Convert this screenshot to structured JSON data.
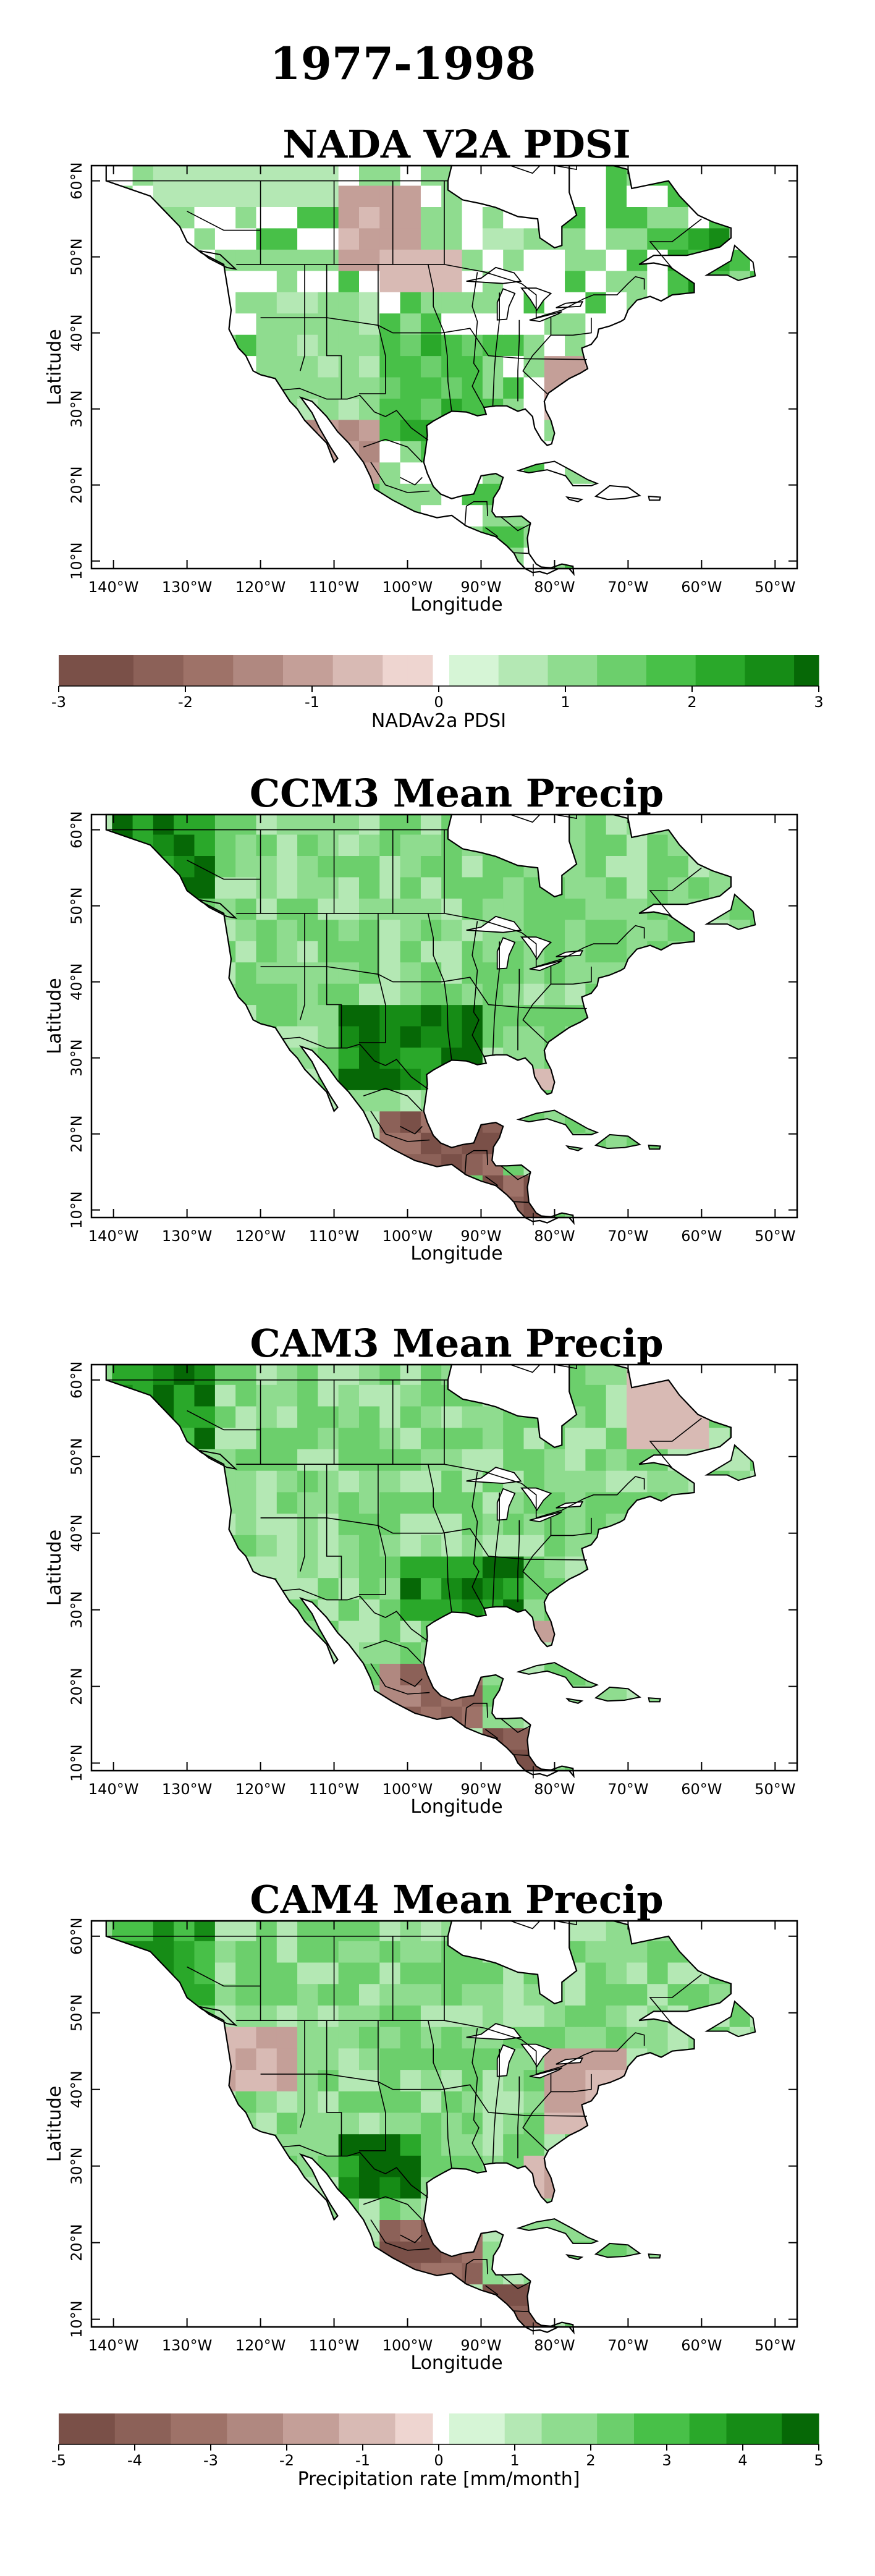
{
  "figure_title": "1977-1998",
  "colors": {
    "dry": [
      "#7a5048",
      "#8c6158",
      "#9e7268",
      "#b08880",
      "#c49f98",
      "#d8bab4",
      "#eed5d0"
    ],
    "wet": [
      "#d6f5d6",
      "#b4e8b4",
      "#8fdc8f",
      "#6ccf6c",
      "#48c048",
      "#2aa82a",
      "#168c16",
      "#066806"
    ],
    "land_white": "#ffffff",
    "ocean": "#ffffff",
    "coast": "#000000"
  },
  "panels": [
    {
      "title": "NADA V2A PDSI",
      "xlabel": "Longitude",
      "ylabel": "Latitude",
      "xticks": [
        "140°W",
        "130°W",
        "120°W",
        "110°W",
        "100°W",
        "90°W",
        "80°W",
        "70°W",
        "60°W",
        "50°W"
      ],
      "yticks": [
        "10°N",
        "20°N",
        "30°N",
        "40°N",
        "50°N",
        "60°N"
      ]
    },
    {
      "title": "CCM3 Mean Precip",
      "xlabel": "Longitude",
      "ylabel": "Latitude",
      "xticks": [
        "140°W",
        "130°W",
        "120°W",
        "110°W",
        "100°W",
        "90°W",
        "80°W",
        "70°W",
        "60°W",
        "50°W"
      ],
      "yticks": [
        "10°N",
        "20°N",
        "30°N",
        "40°N",
        "50°N",
        "60°N"
      ]
    },
    {
      "title": "CAM3 Mean Precip",
      "xlabel": "Longitude",
      "ylabel": "Latitude",
      "xticks": [
        "140°W",
        "130°W",
        "120°W",
        "110°W",
        "100°W",
        "90°W",
        "80°W",
        "70°W",
        "60°W",
        "50°W"
      ],
      "yticks": [
        "10°N",
        "20°N",
        "30°N",
        "40°N",
        "50°N",
        "60°N"
      ]
    },
    {
      "title": "CAM4 Mean Precip",
      "xlabel": "Longitude",
      "ylabel": "Latitude",
      "xticks": [
        "140°W",
        "130°W",
        "120°W",
        "110°W",
        "100°W",
        "90°W",
        "80°W",
        "70°W",
        "60°W",
        "50°W"
      ],
      "yticks": [
        "10°N",
        "20°N",
        "30°N",
        "40°N",
        "50°N",
        "60°N"
      ]
    }
  ],
  "colorbars": [
    {
      "label": "NADAv2a PDSI",
      "ticks": [
        "-3",
        "-2",
        "-1",
        "0",
        "1",
        "2",
        "3"
      ]
    },
    {
      "label": "Precipitation rate [mm/month]",
      "ticks": [
        "-5",
        "-4",
        "-3",
        "-2",
        "-1",
        "0",
        "1",
        "2",
        "3",
        "4",
        "5"
      ]
    }
  ],
  "chart_data": [
    {
      "type": "heatmap",
      "title": "NADA V2A PDSI",
      "xlabel": "Longitude",
      "ylabel": "Latitude",
      "xlim": [
        -143,
        -47
      ],
      "ylim": [
        9,
        62
      ],
      "colorbar": {
        "label": "NADAv2a PDSI",
        "range": [
          -3,
          3
        ]
      },
      "regions": [
        {
          "lat": [
            56,
            62
          ],
          "lon": [
            -135,
            -110
          ],
          "value": 0.5
        },
        {
          "lat": [
            48,
            60
          ],
          "lon": [
            -110,
            -98
          ],
          "value": -0.8
        },
        {
          "lat": [
            45,
            52
          ],
          "lon": [
            -105,
            -93
          ],
          "value": -0.6
        },
        {
          "lat": [
            50,
            55
          ],
          "lon": [
            -90,
            -80
          ],
          "value": 0.7
        },
        {
          "lat": [
            45,
            55
          ],
          "lon": [
            -65,
            -55
          ],
          "value": 2.0
        },
        {
          "lat": [
            25,
            40
          ],
          "lon": [
            -105,
            -90
          ],
          "value": 1.8
        },
        {
          "lat": [
            30,
            45
          ],
          "lon": [
            -120,
            -105
          ],
          "value": 0.9
        },
        {
          "lat": [
            30,
            38
          ],
          "lon": [
            -82,
            -72
          ],
          "value": -1.0
        },
        {
          "lat": [
            20,
            28
          ],
          "lon": [
            -115,
            -105
          ],
          "value": -1.2
        }
      ]
    },
    {
      "type": "heatmap",
      "title": "CCM3 Mean Precip",
      "xlabel": "Longitude",
      "ylabel": "Latitude",
      "xlim": [
        -143,
        -47
      ],
      "ylim": [
        9,
        62
      ],
      "colorbar": {
        "label": "Precipitation rate [mm/month]",
        "range": [
          -5,
          5
        ]
      },
      "regions": [
        {
          "lat": [
            50,
            61
          ],
          "lon": [
            -140,
            -125
          ],
          "value": 4.5
        },
        {
          "lat": [
            40,
            55
          ],
          "lon": [
            -90,
            -70
          ],
          "value": 2.0
        },
        {
          "lat": [
            25,
            38
          ],
          "lon": [
            -108,
            -90
          ],
          "value": 4.5
        },
        {
          "lat": [
            15,
            22
          ],
          "lon": [
            -105,
            -88
          ],
          "value": -4.0
        },
        {
          "lat": [
            8,
            15
          ],
          "lon": [
            -90,
            -80
          ],
          "value": -4.5
        },
        {
          "lat": [
            25,
            30
          ],
          "lon": [
            -83,
            -79
          ],
          "value": -1.0
        }
      ]
    },
    {
      "type": "heatmap",
      "title": "CAM3 Mean Precip",
      "xlabel": "Longitude",
      "ylabel": "Latitude",
      "xlim": [
        -143,
        -47
      ],
      "ylim": [
        9,
        62
      ],
      "colorbar": {
        "label": "Precipitation rate [mm/month]",
        "range": [
          -5,
          5
        ]
      },
      "regions": [
        {
          "lat": [
            50,
            61
          ],
          "lon": [
            -140,
            -125
          ],
          "value": 4.0
        },
        {
          "lat": [
            28,
            38
          ],
          "lon": [
            -100,
            -85
          ],
          "value": 4.0
        },
        {
          "lat": [
            15,
            22
          ],
          "lon": [
            -105,
            -90
          ],
          "value": -3.5
        },
        {
          "lat": [
            8,
            15
          ],
          "lon": [
            -90,
            -80
          ],
          "value": -4.5
        },
        {
          "lat": [
            25,
            30
          ],
          "lon": [
            -83,
            -79
          ],
          "value": -1.5
        },
        {
          "lat": [
            52,
            62
          ],
          "lon": [
            -70,
            -60
          ],
          "value": -1.0
        }
      ]
    },
    {
      "type": "heatmap",
      "title": "CAM4 Mean Precip",
      "xlabel": "Longitude",
      "ylabel": "Latitude",
      "xlim": [
        -143,
        -47
      ],
      "ylim": [
        9,
        62
      ],
      "colorbar": {
        "label": "Precipitation rate [mm/month]",
        "range": [
          -5,
          5
        ]
      },
      "regions": [
        {
          "lat": [
            50,
            61
          ],
          "lon": [
            -140,
            -125
          ],
          "value": 3.5
        },
        {
          "lat": [
            25,
            35
          ],
          "lon": [
            -110,
            -98
          ],
          "value": 4.5
        },
        {
          "lat": [
            40,
            47
          ],
          "lon": [
            -125,
            -115
          ],
          "value": -1.5
        },
        {
          "lat": [
            15,
            22
          ],
          "lon": [
            -105,
            -90
          ],
          "value": -4.0
        },
        {
          "lat": [
            8,
            15
          ],
          "lon": [
            -90,
            -80
          ],
          "value": -4.5
        },
        {
          "lat": [
            35,
            45
          ],
          "lon": [
            -80,
            -70
          ],
          "value": -1.5
        },
        {
          "lat": [
            25,
            32
          ],
          "lon": [
            -85,
            -78
          ],
          "value": -1.5
        }
      ]
    }
  ]
}
